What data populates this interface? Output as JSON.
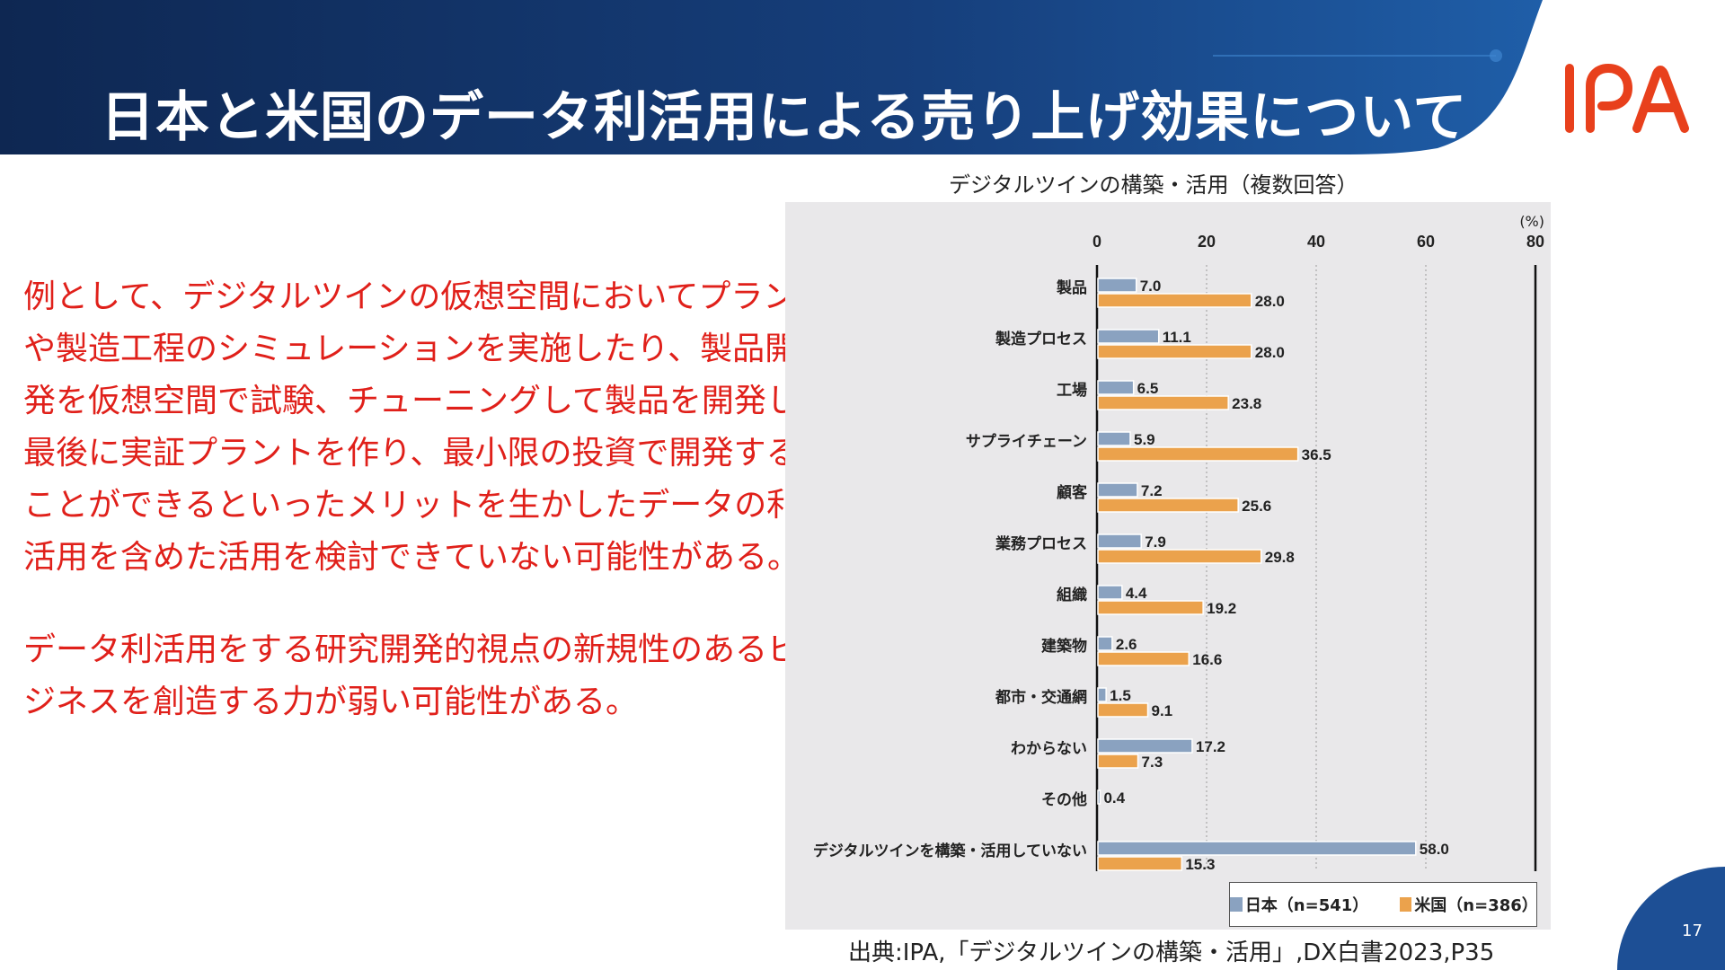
{
  "header": {
    "title": "日本と米国のデータ利活用による売り上げ効果について",
    "logo_text": "IPA"
  },
  "body": {
    "paragraph1": [
      "例として、デジタルツインの仮想空間においてプラント",
      "や製造工程のシミュレーションを実施したり、製品開",
      "発を仮想空間で試験、チューニングして製品を開発し、",
      "最後に実証プラントを作り、最小限の投資で開発する",
      "ことができるといったメリットを生かしたデータの利",
      "活用を含めた活用を検討できていない可能性がある。"
    ],
    "paragraph2": [
      "データ利活用をする研究開発的視点の新規性のあるビ",
      "ジネスを創造する力が弱い可能性がある。"
    ]
  },
  "chart_data": {
    "type": "bar",
    "orientation": "horizontal",
    "title": "デジタルツインの構築・活用（複数回答）",
    "unit_label": "(%)",
    "xlim": [
      0,
      80
    ],
    "xticks": [
      "0",
      "20",
      "40",
      "60",
      "80"
    ],
    "grid": true,
    "legend_position": "bottom-right",
    "categories": [
      "製品",
      "製造プロセス",
      "工場",
      "サプライチェーン",
      "顧客",
      "業務プロセス",
      "組織",
      "建築物",
      "都市・交通網",
      "わからない",
      "その他",
      "デジタルツインを構築・活用していない"
    ],
    "series": [
      {
        "name": "日本（n=541）",
        "color": "#8aa2c0",
        "values": [
          7.0,
          11.1,
          6.5,
          5.9,
          7.2,
          7.9,
          4.4,
          2.6,
          1.5,
          17.2,
          0.4,
          58.0
        ],
        "labels": [
          "7.0",
          "11.1",
          "6.5",
          "5.9",
          "7.2",
          "7.9",
          "4.4",
          "2.6",
          "1.5",
          "17.2",
          "0.4",
          "58.0"
        ]
      },
      {
        "name": "米国（n=386）",
        "color": "#eba24c",
        "values": [
          28.0,
          28.0,
          23.8,
          36.5,
          25.6,
          29.8,
          19.2,
          16.6,
          9.1,
          7.3,
          null,
          15.3
        ],
        "labels": [
          "28.0",
          "28.0",
          "23.8",
          "36.5",
          "25.6",
          "29.8",
          "19.2",
          "16.6",
          "9.1",
          "7.3",
          null,
          "15.3"
        ]
      }
    ]
  },
  "source": "出典:IPA,「デジタルツインの構築・活用」,DX白書2023,P35",
  "page_number": "17"
}
